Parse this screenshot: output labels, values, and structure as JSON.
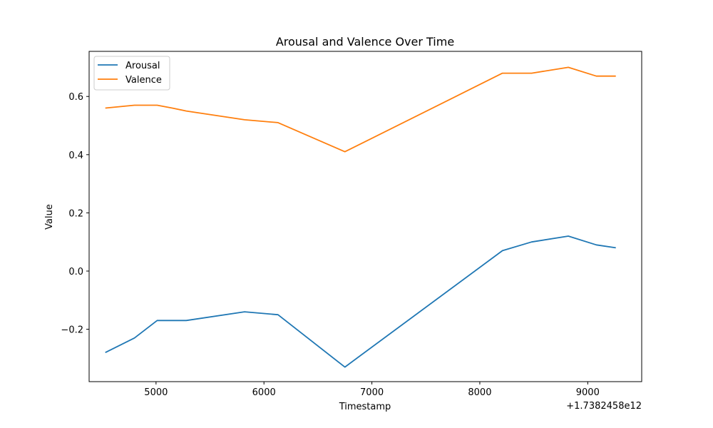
{
  "chart_data": {
    "type": "line",
    "title": "Arousal and Valence Over Time",
    "xlabel": "Timestamp",
    "ylabel": "Value",
    "x_offset_label": "+1.7382458e12",
    "xlim": [
      4380,
      9500
    ],
    "ylim": [
      -0.38,
      0.755
    ],
    "x_ticks": [
      5000,
      6000,
      7000,
      8000,
      9000
    ],
    "x_tick_labels": [
      "5000",
      "6000",
      "7000",
      "8000",
      "9000"
    ],
    "y_ticks": [
      -0.2,
      0.0,
      0.2,
      0.4,
      0.6
    ],
    "y_tick_labels": [
      "−0.2",
      "0.0",
      "0.2",
      "0.4",
      "0.6"
    ],
    "grid": false,
    "legend_position": "top-left",
    "series": [
      {
        "name": "Arousal",
        "color": "#1f77b4",
        "x": [
          4530,
          4800,
          5010,
          5280,
          5820,
          6130,
          6750,
          8210,
          8480,
          8820,
          9080,
          9260
        ],
        "y": [
          -0.28,
          -0.23,
          -0.17,
          -0.17,
          -0.14,
          -0.15,
          -0.33,
          0.07,
          0.1,
          0.12,
          0.09,
          0.08
        ]
      },
      {
        "name": "Valence",
        "color": "#ff7f0e",
        "x": [
          4530,
          4800,
          5010,
          5150,
          5280,
          5820,
          6130,
          6750,
          8210,
          8480,
          8820,
          9080,
          9260
        ],
        "y": [
          0.56,
          0.57,
          0.57,
          0.56,
          0.55,
          0.52,
          0.51,
          0.41,
          0.68,
          0.68,
          0.7,
          0.67,
          0.67
        ]
      }
    ]
  }
}
